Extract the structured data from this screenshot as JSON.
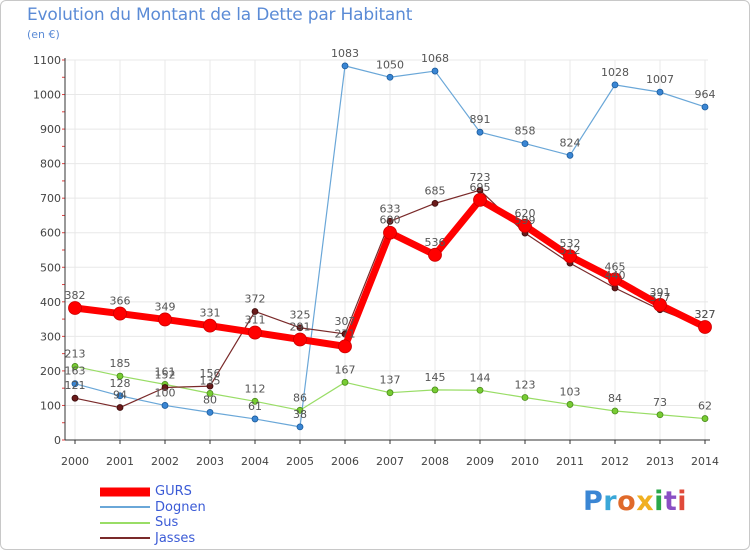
{
  "title": "Evolution du Montant de la Dette par Habitant",
  "subtitle": "(en €)",
  "logo": {
    "text": "Proxiti",
    "colors": [
      "#3a86d4",
      "#3aa7d8",
      "#e06a2a",
      "#f0b020",
      "#2aa84a",
      "#8a4fc4",
      "#e04a3a"
    ]
  },
  "colors": {
    "GURS": "#ff0000",
    "Dognen": "#6aa7d8",
    "Sus": "#99dd66",
    "Jasses": "#7a2a2a",
    "grid": "#e8e8e8",
    "axis": "#333333",
    "labels": "#444444"
  },
  "chart_data": {
    "type": "line",
    "title": "Evolution du Montant de la Dette par Habitant",
    "ylabel": "(en €)",
    "xlabel": "",
    "categories": [
      "2000",
      "2001",
      "2002",
      "2003",
      "2004",
      "2005",
      "2006",
      "2007",
      "2008",
      "2009",
      "2010",
      "2011",
      "2012",
      "2013",
      "2014"
    ],
    "ylim": [
      0,
      1100
    ],
    "yticks": [
      "0",
      "100",
      "200",
      "300",
      "400",
      "500",
      "600",
      "700",
      "800",
      "900",
      "1000",
      "1100"
    ],
    "series": [
      {
        "name": "GURS",
        "values": [
          382,
          366,
          349,
          331,
          311,
          291,
          271,
          600,
          536,
          695,
          620,
          532,
          465,
          391,
          327
        ],
        "labels": [
          "382",
          "366",
          "349",
          "331",
          "311",
          "291",
          "271",
          "600",
          "536",
          "695",
          "620",
          "532",
          "465",
          "391",
          "327"
        ]
      },
      {
        "name": "Dognen",
        "values": [
          163,
          128,
          100,
          80,
          61,
          38,
          1083,
          1050,
          1068,
          891,
          858,
          824,
          1028,
          1007,
          964
        ],
        "labels": [
          "163",
          "128",
          "100",
          "80",
          "61",
          "38",
          "1083",
          "1050",
          "1068",
          "891",
          "858",
          "824",
          "1028",
          "1007",
          "964"
        ]
      },
      {
        "name": "Sus",
        "values": [
          213,
          185,
          161,
          135,
          112,
          86,
          167,
          137,
          145,
          144,
          123,
          103,
          84,
          73,
          62
        ],
        "labels": [
          "213",
          "185",
          "161",
          "135",
          "112",
          "86",
          "167",
          "137",
          "145",
          "144",
          "123",
          "103",
          "84",
          "73",
          "62"
        ]
      },
      {
        "name": "Jasses",
        "values": [
          121,
          94,
          152,
          156,
          372,
          325,
          307,
          633,
          685,
          723,
          599,
          512,
          440,
          377,
          327
        ],
        "labels": [
          "121",
          "94",
          "152",
          "156",
          "372",
          "325",
          "307",
          "633",
          "685",
          "723",
          "599",
          "512",
          "440",
          "377",
          "327"
        ]
      }
    ],
    "legend": [
      "GURS",
      "Dognen",
      "Sus",
      "Jasses"
    ],
    "legend_position": "bottom-left",
    "grid": true
  }
}
